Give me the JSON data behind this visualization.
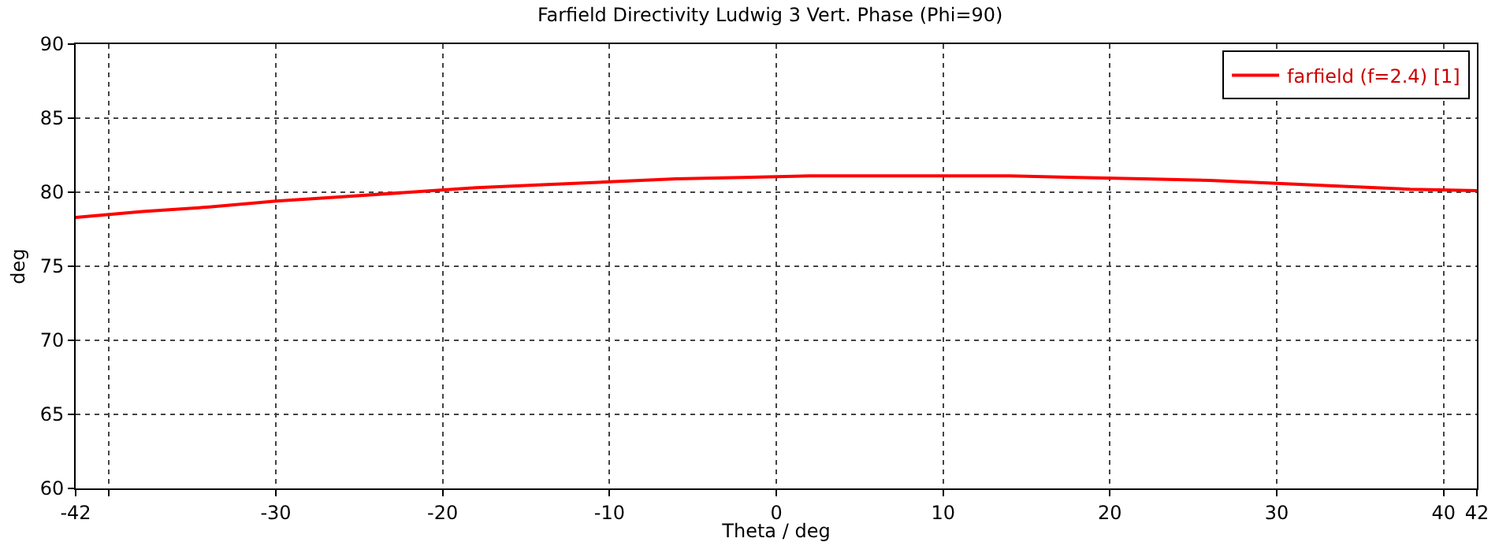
{
  "chart_data": {
    "type": "line",
    "title": "Farfield Directivity Ludwig 3 Vert. Phase (Phi=90)",
    "xlabel": "Theta / deg",
    "ylabel": "deg",
    "x": [
      -42,
      -38,
      -34,
      -30,
      -26,
      -22,
      -18,
      -14,
      -10,
      -6,
      -2,
      2,
      6,
      10,
      14,
      18,
      22,
      26,
      30,
      34,
      38,
      42
    ],
    "series": [
      {
        "name": "farfield (f=2.4) [1]",
        "color": "#ff0000",
        "values": [
          78.3,
          78.7,
          79.0,
          79.4,
          79.7,
          80.0,
          80.3,
          80.5,
          80.7,
          80.9,
          81.0,
          81.1,
          81.1,
          81.1,
          81.1,
          81.0,
          80.9,
          80.8,
          80.6,
          80.4,
          80.2,
          80.1
        ]
      }
    ],
    "xlim": [
      -42,
      42
    ],
    "xticks": [
      -42,
      {
        "value": -40,
        "label": null
      },
      -30,
      -20,
      -10,
      0,
      10,
      20,
      30,
      40,
      42
    ],
    "ylim": [
      60,
      90
    ],
    "yticks": [
      60,
      65,
      70,
      75,
      80,
      85,
      90
    ],
    "grid": true,
    "legend": "top right",
    "marker": "none",
    "line_style": "solid"
  }
}
